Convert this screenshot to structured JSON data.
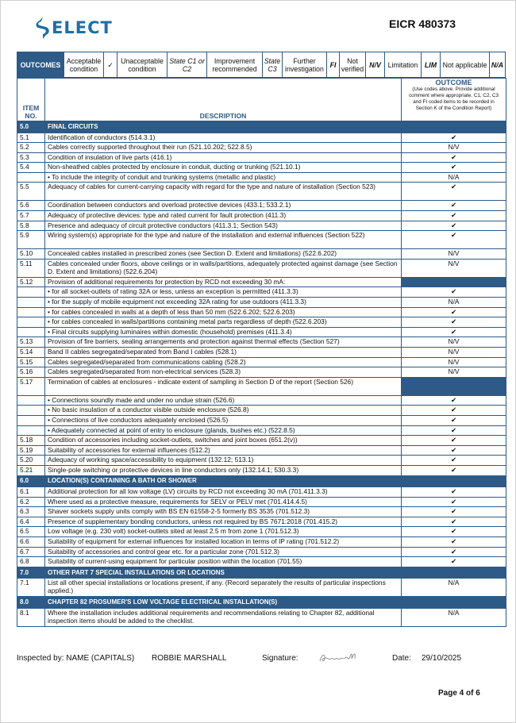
{
  "header": {
    "logo_text": "ELECT",
    "logo_full": "SELECT",
    "doc_ref": "EICR 480373",
    "brand_color": "#1f6fa3",
    "table_color": "#2d5a86"
  },
  "legend": [
    {
      "text": "OUTCOMES",
      "style": "title"
    },
    {
      "text": "Acceptable condition",
      "style": ""
    },
    {
      "text": "✓",
      "style": ""
    },
    {
      "text": "Unacceptable condition",
      "style": ""
    },
    {
      "text": "State C1 or C2",
      "style": "it"
    },
    {
      "text": "Improvement recommended",
      "style": ""
    },
    {
      "text": "State C3",
      "style": "it"
    },
    {
      "text": "Further investigation",
      "style": ""
    },
    {
      "text": "FI",
      "style": "bi"
    },
    {
      "text": "Not verified",
      "style": ""
    },
    {
      "text": "N/V",
      "style": "bi"
    },
    {
      "text": "Limitation",
      "style": ""
    },
    {
      "text": "LIM",
      "style": "bi"
    },
    {
      "text": "Not applicable",
      "style": ""
    },
    {
      "text": "N/A",
      "style": "bi"
    }
  ],
  "columns": {
    "item": "ITEM NO.",
    "description": "DESCRIPTION",
    "outcome": "OUTCOME",
    "outcome_note": "(Use codes above. Provide additional comment where appropriate. C1, C2, C3 and FI coded items to be recorded in Section K of the Condition Report)"
  },
  "rows": [
    {
      "type": "section",
      "no": "5.0",
      "desc": "FINAL CIRCUITS"
    },
    {
      "type": "single",
      "no": "5.1",
      "desc": "Identification of conductors (514.3.1)",
      "outcome": "✔"
    },
    {
      "type": "single",
      "no": "5.2",
      "desc": "Cables correctly supported throughout their run (521.10.202; 522.8.5)",
      "outcome": "N/V"
    },
    {
      "type": "single",
      "no": "5.3",
      "desc": "Condition of insulation of live parts (416.1)",
      "outcome": "✔"
    },
    {
      "type": "single",
      "no": "5.4",
      "desc": "Non-sheathed cables protected by enclosure in conduit, ducting or trunking (521.10.1)",
      "outcome": "✔"
    },
    {
      "type": "single",
      "no": "",
      "desc": "• To include the integrity of conduit and trunking systems (metallic and plastic)",
      "outcome": "N/A"
    },
    {
      "type": "double",
      "no": "5.5",
      "desc": "Adequacy of cables for current-carrying capacity with regard for the type and nature of installation (Section 523)",
      "outcome": "✔"
    },
    {
      "type": "single",
      "no": "5.6",
      "desc": "Coordination between conductors and overload protective devices (433.1; 533.2.1)",
      "outcome": "✔"
    },
    {
      "type": "single",
      "no": "5.7",
      "desc": "Adequacy of protective devices: type and rated current for fault protection (411.3)",
      "outcome": "✔"
    },
    {
      "type": "single",
      "no": "5.8",
      "desc": "Presence and adequacy of circuit protective conductors (411.3.1; Section 543)",
      "outcome": "✔"
    },
    {
      "type": "double",
      "no": "5.9",
      "desc": "Wiring system(s) appropriate for the type and nature of the installation and external influences (Section 522)",
      "outcome": "✔"
    },
    {
      "type": "single",
      "no": "5.10",
      "desc": "Concealed cables installed in prescribed zones (see Section D. Extent and limitations) (522.6.202)",
      "outcome": "N/V"
    },
    {
      "type": "double",
      "no": "5.11",
      "desc": "Cables concealed under floors, above ceilings or in walls/partitions, adequately protected against damage (see Section D. Extent and limitations) (522.6.204)",
      "outcome": "N/V"
    },
    {
      "type": "single",
      "no": "5.12",
      "desc": "Provision of additional requirements for protection by RCD not exceeding 30 mA:",
      "outcome": null
    },
    {
      "type": "single",
      "no": "",
      "desc": "• for all socket-outlets of rating 32A or less, unless an exception is permitted (411.3.3)",
      "outcome": "✔"
    },
    {
      "type": "single",
      "no": "",
      "desc": "• for the supply of mobile equipment not exceeding 32A rating for use outdoors (411.3.3)",
      "outcome": "N/A"
    },
    {
      "type": "single",
      "no": "",
      "desc": "• for cables concealed in walls at a depth of less than 50 mm (522.6.202; 522.6.203)",
      "outcome": "✔"
    },
    {
      "type": "single",
      "no": "",
      "desc": "• for cables concealed in walls/partitions containing metal parts regardless of depth (522.6.203)",
      "outcome": "✔"
    },
    {
      "type": "single",
      "no": "",
      "desc": "• Final circuits supplying luminaires within domestic (household) premises (411.3.4)",
      "outcome": "✔"
    },
    {
      "type": "single",
      "no": "5.13",
      "desc": "Provision of fire barriers, sealing arrangements and protection against thermal effects (Section 527)",
      "outcome": "N/V"
    },
    {
      "type": "single",
      "no": "5.14",
      "desc": "Band II cables segregated/separated from Band I cables (528.1)",
      "outcome": "N/V"
    },
    {
      "type": "single",
      "no": "5.15",
      "desc": "Cables segregated/separated from communications cabling (528.2)",
      "outcome": "N/V"
    },
    {
      "type": "single",
      "no": "5.16",
      "desc": "Cables segregated/separated from non-electrical services (528.3)",
      "outcome": "N/V"
    },
    {
      "type": "double",
      "no": "5.17",
      "desc": "Termination of cables at enclosures - indicate extent of sampling in Section D of the report (Section 526)",
      "outcome": null
    },
    {
      "type": "single",
      "no": "",
      "desc": "• Connections soundly made and under no undue strain (526.6)",
      "outcome": "✔"
    },
    {
      "type": "single",
      "no": "",
      "desc": "• No basic insulation of a conductor visible outside enclosure (526.8)",
      "outcome": "✔"
    },
    {
      "type": "single",
      "no": "",
      "desc": "• Connections of live conductors adequately enclosed (526.5)",
      "outcome": "✔"
    },
    {
      "type": "single",
      "no": "",
      "desc": "• Adequately connected at point of entry to enclosure (glands, bushes etc.) (522.8.5)",
      "outcome": "✔"
    },
    {
      "type": "single",
      "no": "5.18",
      "desc": "Condition of accessories including socket-outlets, switches and joint boxes (651.2(v))",
      "outcome": "✔"
    },
    {
      "type": "single",
      "no": "5.19",
      "desc": "Suitability of accessories for external influences (512.2)",
      "outcome": "✔"
    },
    {
      "type": "single",
      "no": "5.20",
      "desc": "Adequacy of working space/accessibility to equipment (132.12; 513.1)",
      "outcome": "✔"
    },
    {
      "type": "single",
      "no": "5.21",
      "desc": "Single-pole switching or protective devices in line conductors only (132.14.1; 530.3.3)",
      "outcome": "✔"
    },
    {
      "type": "section",
      "no": "6.0",
      "desc": "LOCATION(S) CONTAINING A BATH OR SHOWER"
    },
    {
      "type": "single",
      "no": "6.1",
      "desc": "Additional protection for all low voltage (LV) circuits by RCD not exceeding 30 mA (701.411.3.3)",
      "outcome": "✔"
    },
    {
      "type": "single",
      "no": "6.2",
      "desc": "Where used as a protective measure, requirements for SELV or PELV met (701.414.4.5)",
      "outcome": "✔"
    },
    {
      "type": "single",
      "no": "6.3",
      "desc": "Shaver sockets supply units comply with BS EN 61558-2-5 formerly BS 3535 (701.512.3)",
      "outcome": "✔"
    },
    {
      "type": "single",
      "no": "6.4",
      "desc": "Presence of supplementary bonding conductors, unless not required by BS 7671:2018 (701.415.2)",
      "outcome": "✔"
    },
    {
      "type": "single",
      "no": "6.5",
      "desc": "Low voltage (e.g. 230 volt) socket-outlets sited at least 2.5 m from zone 1 (701.512.3)",
      "outcome": "✔"
    },
    {
      "type": "single",
      "no": "6.6",
      "desc": "Suitability of equipment for external influences for installed location in terms of IP rating (701.512.2)",
      "outcome": "✔"
    },
    {
      "type": "single",
      "no": "6.7",
      "desc": "Suitability of accessories and control gear etc. for a particular zone (701.512.3)",
      "outcome": "✔"
    },
    {
      "type": "single",
      "no": "6.8",
      "desc": "Suitability of current-using equipment for particular position within the location (701.55)",
      "outcome": "✔"
    },
    {
      "type": "section",
      "no": "7.0",
      "desc": "OTHER PART 7 SPECIAL INSTALLATIONS OR LOCATIONS"
    },
    {
      "type": "double",
      "no": "7.1",
      "desc": "List all other special installations or locations present, if any. (Record separately the results of particular inspections applied.)",
      "outcome": "N/A"
    },
    {
      "type": "section",
      "no": "8.0",
      "desc": "CHAPTER 82 PROSUMER'S LOW VOLTAGE ELECTRICAL INSTALLATION(S)"
    },
    {
      "type": "double",
      "no": "8.1",
      "desc": "Where the installation includes additional requirements and recommendations relating to Chapter 82, additional inspection items should be added to the checklist.",
      "outcome": "N/A"
    }
  ],
  "footer": {
    "inspected_label": "Inspected by: NAME (CAPITALS)",
    "inspector": "ROBBIE MARSHALL",
    "signature_label": "Signature:",
    "date_label": "Date:",
    "date": "29/10/2025",
    "page": "Page  4  of  6"
  }
}
